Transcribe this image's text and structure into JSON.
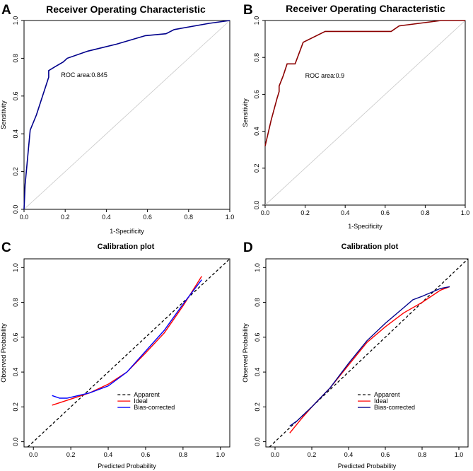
{
  "figure": {
    "panel_labels": [
      "A",
      "B",
      "C",
      "D"
    ]
  },
  "chart_data": [
    {
      "type": "line",
      "panel": "A",
      "title": "Receiver Operating Characteristic",
      "xlabel": "1-Specificity",
      "ylabel": "Sensitivity",
      "xlim": [
        0,
        1
      ],
      "ylim": [
        0,
        1
      ],
      "xticks": [
        "0.0",
        "0.2",
        "0.4",
        "0.6",
        "0.8",
        "1.0"
      ],
      "yticks": [
        "0.0",
        "0.2",
        "0.4",
        "0.6",
        "0.8",
        "1.0"
      ],
      "annotation": "ROC area:0.845",
      "annotation_at": [
        0.18,
        0.7
      ],
      "colors": {
        "curve": "#00008B",
        "reference": "#c8c8c8"
      },
      "series": [
        {
          "name": "ROC",
          "x": [
            0,
            0.005,
            0.03,
            0.06,
            0.09,
            0.12,
            0.12,
            0.15,
            0.19,
            0.21,
            0.31,
            0.45,
            0.59,
            0.69,
            0.73,
            0.9,
            1.0
          ],
          "y": [
            0,
            0.13,
            0.42,
            0.5,
            0.6,
            0.7,
            0.735,
            0.755,
            0.78,
            0.8,
            0.838,
            0.875,
            0.92,
            0.93,
            0.952,
            0.985,
            1.0
          ]
        }
      ]
    },
    {
      "type": "line",
      "panel": "B",
      "title": "Receiver Operating Characteristic",
      "xlabel": "1-Specificity",
      "ylabel": "Sensitivity",
      "xlim": [
        0,
        1
      ],
      "ylim": [
        0,
        1
      ],
      "xticks": [
        "0.0",
        "0.2",
        "0.4",
        "0.6",
        "0.8",
        "1.0"
      ],
      "yticks": [
        "0.0",
        "0.2",
        "0.4",
        "0.6",
        "0.8",
        "1.0"
      ],
      "annotation": "ROC area:0.9",
      "annotation_at": [
        0.2,
        0.69
      ],
      "colors": {
        "curve": "#8B0000",
        "reference": "#c8c8c8"
      },
      "series": [
        {
          "name": "ROC",
          "x": [
            0,
            0.03,
            0.06,
            0.07,
            0.07,
            0.09,
            0.11,
            0.15,
            0.19,
            0.3,
            0.63,
            0.67,
            0.88,
            1.0
          ],
          "y": [
            0.32,
            0.46,
            0.58,
            0.615,
            0.645,
            0.7,
            0.765,
            0.765,
            0.882,
            0.941,
            0.941,
            0.971,
            1.0,
            1.0
          ]
        }
      ]
    },
    {
      "type": "line",
      "panel": "C",
      "title": "Calibration plot",
      "xlabel": "Predicted Probability",
      "ylabel": "Observed Probability",
      "xlim": [
        -0.05,
        1.05
      ],
      "ylim": [
        -0.03,
        1.05
      ],
      "xticks": [
        "0.0",
        "0.2",
        "0.4",
        "0.6",
        "0.8",
        "1.0"
      ],
      "yticks": [
        "0.0",
        "0.2",
        "0.4",
        "0.6",
        "0.8",
        "1.0"
      ],
      "legend": [
        "Apparent",
        "Ideal",
        "Bias-corrected"
      ],
      "legend_at": [
        0.45,
        0.27
      ],
      "colors": {
        "Apparent": "#000000",
        "Ideal": "#ff0000",
        "Bias-corrected": "#0000ff"
      },
      "series": [
        {
          "name": "Apparent",
          "x": [
            -0.05,
            1.05
          ],
          "y": [
            -0.05,
            1.05
          ]
        },
        {
          "name": "Ideal",
          "x": [
            0.1,
            0.2,
            0.3,
            0.4,
            0.5,
            0.6,
            0.7,
            0.8,
            0.9
          ],
          "y": [
            0.21,
            0.245,
            0.28,
            0.33,
            0.4,
            0.51,
            0.625,
            0.78,
            0.95
          ]
        },
        {
          "name": "Bias-corrected",
          "x": [
            0.1,
            0.14,
            0.18,
            0.22,
            0.3,
            0.4,
            0.5,
            0.6,
            0.7,
            0.8,
            0.9
          ],
          "y": [
            0.265,
            0.25,
            0.25,
            0.26,
            0.28,
            0.32,
            0.4,
            0.52,
            0.64,
            0.79,
            0.93
          ]
        }
      ]
    },
    {
      "type": "line",
      "panel": "D",
      "title": "Calibration plot",
      "xlabel": "Predicted Probability",
      "ylabel": "Observed Probability",
      "xlim": [
        -0.05,
        1.05
      ],
      "ylim": [
        -0.03,
        1.05
      ],
      "xticks": [
        "0.0",
        "0.2",
        "0.4",
        "0.6",
        "0.8",
        "1.0"
      ],
      "yticks": [
        "0.0",
        "0.2",
        "0.4",
        "0.6",
        "0.8",
        "1.0"
      ],
      "legend": [
        "Apparent",
        "Ideal",
        "Bias-corrected"
      ],
      "legend_at": [
        0.45,
        0.27
      ],
      "colors": {
        "Apparent": "#000000",
        "Ideal": "#ff0000",
        "Bias-corrected": "#00008B"
      },
      "series": [
        {
          "name": "Apparent",
          "x": [
            -0.05,
            1.05
          ],
          "y": [
            -0.05,
            1.05
          ]
        },
        {
          "name": "Ideal",
          "x": [
            0.08,
            0.15,
            0.2,
            0.3,
            0.4,
            0.5,
            0.6,
            0.7,
            0.8,
            0.9,
            0.95
          ],
          "y": [
            0.05,
            0.14,
            0.2,
            0.31,
            0.44,
            0.57,
            0.66,
            0.74,
            0.8,
            0.87,
            0.89
          ]
        },
        {
          "name": "Bias-corrected",
          "x": [
            0.08,
            0.12,
            0.2,
            0.3,
            0.4,
            0.5,
            0.6,
            0.7,
            0.75,
            0.8,
            0.9,
            0.95
          ],
          "y": [
            0.09,
            0.12,
            0.2,
            0.31,
            0.45,
            0.58,
            0.68,
            0.77,
            0.815,
            0.835,
            0.88,
            0.89
          ]
        }
      ]
    }
  ]
}
